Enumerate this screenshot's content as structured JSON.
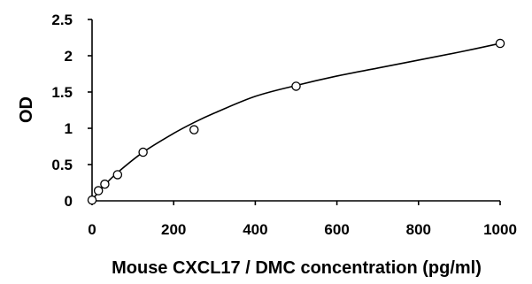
{
  "chart_data": {
    "type": "scatter",
    "title": "",
    "xlabel": "Mouse CXCL17 / DMC concentration (pg/ml)",
    "ylabel": "OD",
    "xlim": [
      0,
      1000
    ],
    "ylim": [
      0,
      2.5
    ],
    "x_ticks": [
      0,
      200,
      400,
      600,
      800,
      1000
    ],
    "y_ticks": [
      0,
      0.5,
      1,
      1.5,
      2,
      2.5
    ],
    "x_tick_labels": [
      "0",
      "200",
      "400",
      "600",
      "800",
      "1000"
    ],
    "y_tick_labels": [
      "0",
      "0.5",
      "1",
      "1.5",
      "2",
      "2.5"
    ],
    "grid": false,
    "legend": "none",
    "series": [
      {
        "marker": "open-circle",
        "x": [
          0,
          15.6,
          31.25,
          62.5,
          125,
          250,
          500,
          1000
        ],
        "y": [
          0.01,
          0.14,
          0.23,
          0.36,
          0.67,
          0.98,
          1.58,
          2.17
        ]
      }
    ],
    "fit_curve": {
      "x": [
        0,
        15.6,
        31.25,
        62.5,
        125,
        200,
        250,
        300,
        400,
        500,
        600,
        700,
        800,
        900,
        1000
      ],
      "y": [
        0.01,
        0.12,
        0.22,
        0.39,
        0.67,
        0.93,
        1.08,
        1.21,
        1.44,
        1.59,
        1.72,
        1.83,
        1.94,
        2.05,
        2.17
      ]
    }
  }
}
